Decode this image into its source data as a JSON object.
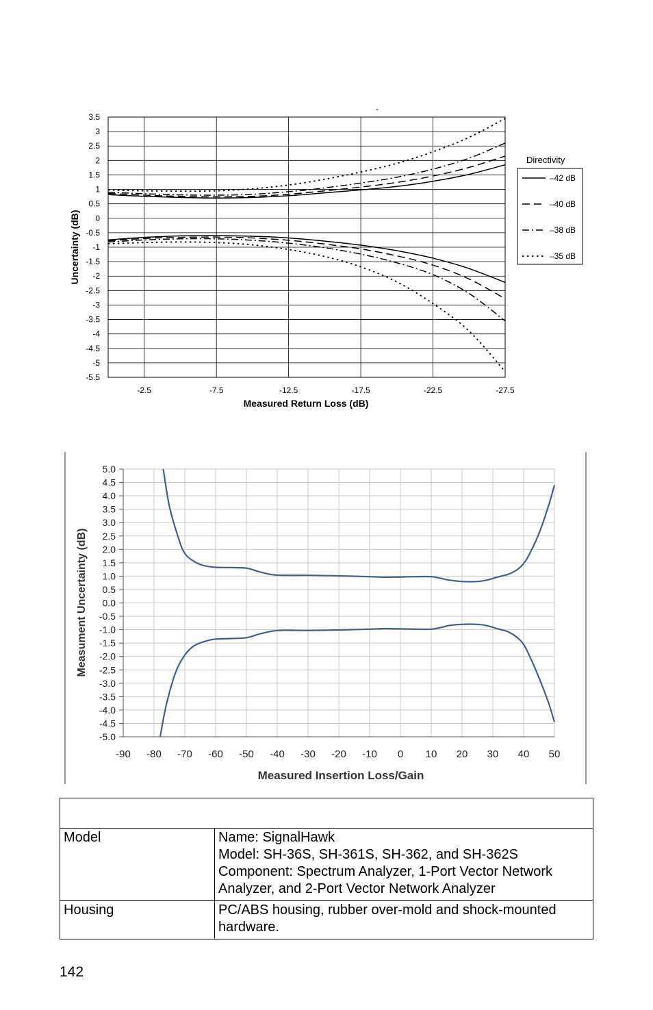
{
  "chart_data": [
    {
      "type": "line",
      "title": "-",
      "xlabel": "Measured Return Loss (dB)",
      "ylabel": "Uncertainty (dB)",
      "x_ticks": [
        "-2.5",
        "-7.5",
        "-12.5",
        "-17.5",
        "-22.5",
        "-27.5"
      ],
      "y_ticks": [
        "3.5",
        "3",
        "2.5",
        "2",
        "1.5",
        "1",
        "0.5",
        "0",
        "-0.5",
        "-1",
        "-1.5",
        "-2",
        "-2.5",
        "-3",
        "-3.5",
        "-4",
        "-4.5",
        "-5",
        "-5.5"
      ],
      "xlim": [
        0,
        -27.5
      ],
      "ylim": [
        -5.5,
        3.5
      ],
      "grid": true,
      "legend_title": "Directivity",
      "legend_position": "right",
      "series": [
        {
          "name": "–42 dB",
          "dash": "solid",
          "upper": [
            [
              0,
              0.82
            ],
            [
              -2.5,
              0.76
            ],
            [
              -5,
              0.72
            ],
            [
              -7.5,
              0.7
            ],
            [
              -10,
              0.72
            ],
            [
              -12.5,
              0.78
            ],
            [
              -15,
              0.88
            ],
            [
              -17.5,
              0.98
            ],
            [
              -20,
              1.1
            ],
            [
              -22.5,
              1.28
            ],
            [
              -25,
              1.52
            ],
            [
              -27.5,
              1.85
            ]
          ],
          "lower": [
            [
              0,
              -0.75
            ],
            [
              -2.5,
              -0.66
            ],
            [
              -5,
              -0.61
            ],
            [
              -7.5,
              -0.6
            ],
            [
              -10,
              -0.62
            ],
            [
              -12.5,
              -0.68
            ],
            [
              -15,
              -0.79
            ],
            [
              -17.5,
              -0.93
            ],
            [
              -20,
              -1.12
            ],
            [
              -22.5,
              -1.38
            ],
            [
              -25,
              -1.74
            ],
            [
              -27.5,
              -2.22
            ]
          ]
        },
        {
          "name": "–40 dB",
          "dash": "long-dash",
          "upper": [
            [
              0,
              0.86
            ],
            [
              -2.5,
              0.8
            ],
            [
              -5,
              0.76
            ],
            [
              -7.5,
              0.74
            ],
            [
              -10,
              0.76
            ],
            [
              -12.5,
              0.83
            ],
            [
              -15,
              0.95
            ],
            [
              -17.5,
              1.08
            ],
            [
              -20,
              1.24
            ],
            [
              -22.5,
              1.46
            ],
            [
              -25,
              1.76
            ],
            [
              -27.5,
              2.15
            ]
          ],
          "lower": [
            [
              0,
              -0.78
            ],
            [
              -2.5,
              -0.7
            ],
            [
              -5,
              -0.66
            ],
            [
              -7.5,
              -0.65
            ],
            [
              -10,
              -0.68
            ],
            [
              -12.5,
              -0.76
            ],
            [
              -15,
              -0.89
            ],
            [
              -17.5,
              -1.06
            ],
            [
              -20,
              -1.3
            ],
            [
              -22.5,
              -1.62
            ],
            [
              -25,
              -2.1
            ],
            [
              -27.5,
              -2.78
            ]
          ]
        },
        {
          "name": "–38 dB",
          "dash": "dash-dot",
          "upper": [
            [
              0,
              0.9
            ],
            [
              -2.5,
              0.85
            ],
            [
              -5,
              0.81
            ],
            [
              -7.5,
              0.8
            ],
            [
              -10,
              0.83
            ],
            [
              -12.5,
              0.92
            ],
            [
              -15,
              1.05
            ],
            [
              -17.5,
              1.22
            ],
            [
              -20,
              1.42
            ],
            [
              -22.5,
              1.7
            ],
            [
              -25,
              2.08
            ],
            [
              -27.5,
              2.6
            ]
          ],
          "lower": [
            [
              0,
              -0.82
            ],
            [
              -2.5,
              -0.75
            ],
            [
              -5,
              -0.71
            ],
            [
              -7.5,
              -0.71
            ],
            [
              -10,
              -0.76
            ],
            [
              -12.5,
              -0.86
            ],
            [
              -15,
              -1.02
            ],
            [
              -17.5,
              -1.24
            ],
            [
              -20,
              -1.54
            ],
            [
              -22.5,
              -1.95
            ],
            [
              -25,
              -2.6
            ],
            [
              -27.5,
              -3.55
            ]
          ]
        },
        {
          "name": "–35 dB",
          "dash": "dotted",
          "upper": [
            [
              0,
              0.98
            ],
            [
              -2.5,
              0.95
            ],
            [
              -5,
              0.94
            ],
            [
              -7.5,
              0.95
            ],
            [
              -10,
              1.02
            ],
            [
              -12.5,
              1.15
            ],
            [
              -15,
              1.35
            ],
            [
              -17.5,
              1.6
            ],
            [
              -20,
              1.9
            ],
            [
              -22.5,
              2.3
            ],
            [
              -25,
              2.8
            ],
            [
              -27.5,
              3.45
            ]
          ],
          "lower": [
            [
              0,
              -0.88
            ],
            [
              -2.5,
              -0.84
            ],
            [
              -5,
              -0.82
            ],
            [
              -7.5,
              -0.84
            ],
            [
              -10,
              -0.92
            ],
            [
              -12.5,
              -1.08
            ],
            [
              -15,
              -1.32
            ],
            [
              -17.5,
              -1.68
            ],
            [
              -20,
              -2.2
            ],
            [
              -22.5,
              -2.95
            ],
            [
              -25,
              -3.9
            ],
            [
              -27.5,
              -5.3
            ]
          ]
        }
      ]
    },
    {
      "type": "line",
      "title": "",
      "xlabel": "Measured Insertion Loss/Gain",
      "ylabel": "Measument Uncertainty (dB)",
      "x_ticks": [
        "-90",
        "-80",
        "-70",
        "-60",
        "-50",
        "-40",
        "-30",
        "-20",
        "-10",
        "0",
        "10",
        "20",
        "30",
        "40",
        "50"
      ],
      "y_ticks": [
        "5.0",
        "4.5",
        "4.0",
        "3.5",
        "3.0",
        "2.5",
        "2.0",
        "1.5",
        "1.0",
        "0.5",
        "0.0",
        "-0.5",
        "-1.0",
        "-1.5",
        "-2.0",
        "-2.5",
        "-3.0",
        "-3.5",
        "-4.0",
        "-4.5",
        "-5.0"
      ],
      "xlim": [
        -90,
        50
      ],
      "ylim": [
        -5,
        5
      ],
      "grid": true,
      "color": "#3d5f94",
      "series": [
        {
          "curve": "upper",
          "points": [
            [
              -77,
              5.0
            ],
            [
              -75,
              3.6
            ],
            [
              -72,
              2.4
            ],
            [
              -70,
              1.85
            ],
            [
              -67,
              1.55
            ],
            [
              -64,
              1.4
            ],
            [
              -60,
              1.33
            ],
            [
              -55,
              1.32
            ],
            [
              -50,
              1.3
            ],
            [
              -46,
              1.17
            ],
            [
              -42,
              1.06
            ],
            [
              -38,
              1.03
            ],
            [
              -30,
              1.03
            ],
            [
              -20,
              1.01
            ],
            [
              -10,
              0.98
            ],
            [
              -5,
              0.96
            ],
            [
              0,
              0.97
            ],
            [
              5,
              0.98
            ],
            [
              10,
              0.98
            ],
            [
              13,
              0.92
            ],
            [
              16,
              0.85
            ],
            [
              20,
              0.8
            ],
            [
              25,
              0.8
            ],
            [
              28,
              0.85
            ],
            [
              32,
              0.98
            ],
            [
              35,
              1.07
            ],
            [
              38,
              1.25
            ],
            [
              40,
              1.47
            ],
            [
              42,
              1.85
            ],
            [
              45,
              2.6
            ],
            [
              48,
              3.6
            ],
            [
              50,
              4.4
            ]
          ]
        },
        {
          "curve": "lower",
          "points": [
            [
              -78,
              -5.0
            ],
            [
              -76,
              -3.8
            ],
            [
              -73,
              -2.6
            ],
            [
              -70,
              -1.95
            ],
            [
              -67,
              -1.6
            ],
            [
              -63,
              -1.42
            ],
            [
              -60,
              -1.35
            ],
            [
              -55,
              -1.33
            ],
            [
              -50,
              -1.3
            ],
            [
              -46,
              -1.17
            ],
            [
              -42,
              -1.06
            ],
            [
              -38,
              -1.02
            ],
            [
              -30,
              -1.03
            ],
            [
              -20,
              -1.01
            ],
            [
              -10,
              -0.98
            ],
            [
              -5,
              -0.96
            ],
            [
              0,
              -0.97
            ],
            [
              5,
              -0.98
            ],
            [
              10,
              -0.98
            ],
            [
              13,
              -0.92
            ],
            [
              16,
              -0.84
            ],
            [
              20,
              -0.8
            ],
            [
              25,
              -0.8
            ],
            [
              28,
              -0.85
            ],
            [
              32,
              -0.98
            ],
            [
              35,
              -1.08
            ],
            [
              38,
              -1.3
            ],
            [
              40,
              -1.55
            ],
            [
              42,
              -2.0
            ],
            [
              45,
              -2.8
            ],
            [
              48,
              -3.7
            ],
            [
              50,
              -4.45
            ]
          ]
        }
      ]
    }
  ],
  "table": {
    "header": "",
    "rows": [
      {
        "label": "Model",
        "lines": [
          "Name: SignalHawk",
          "Model: SH-36S, SH-361S, SH-362, and SH-362S",
          "Component: Spectrum Analyzer, 1-Port Vector Network",
          "Analyzer, and 2-Port Vector Network Analyzer"
        ]
      },
      {
        "label": "Housing",
        "lines": [
          "PC/ABS housing, rubber over-mold and shock-mounted",
          "hardware."
        ]
      }
    ]
  },
  "page_number": "142"
}
